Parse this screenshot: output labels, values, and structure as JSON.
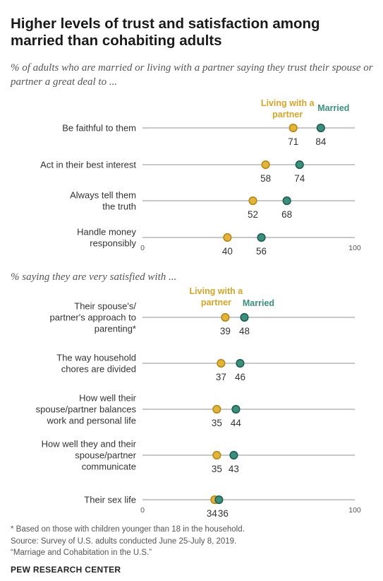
{
  "title": "Higher levels of trust and satisfaction among married than cohabiting adults",
  "colors": {
    "married": "#3b8f7c",
    "married_dark": "#1f5f51",
    "cohabiting": "#e2b43c",
    "cohabiting_dark": "#b5891a",
    "line": "#a8a8a8",
    "married_text": "#3b8f7c",
    "cohabiting_text": "#d4a52a"
  },
  "chart_data": [
    {
      "type": "dot",
      "subtitle": "% of adults who are married or living with a partner saying they trust their spouse or partner a great deal to ...",
      "legend": {
        "cohabiting": [
          "Living with a",
          "partner"
        ],
        "married": "Married"
      },
      "xlim": [
        0,
        100
      ],
      "ticks": [
        "0",
        "100"
      ],
      "categories": [
        [
          "Be faithful to them"
        ],
        [
          "Act in their best interest"
        ],
        [
          "Always tell them",
          "the truth"
        ],
        [
          "Handle money",
          "responsibly"
        ]
      ],
      "series": [
        {
          "name": "Living with a partner",
          "values": [
            71,
            58,
            52,
            40
          ]
        },
        {
          "name": "Married",
          "values": [
            84,
            74,
            68,
            56
          ]
        }
      ]
    },
    {
      "type": "dot",
      "subtitle": "% saying they are very satisfied with ...",
      "legend": {
        "cohabiting": [
          "Living with a",
          "partner"
        ],
        "married": "Married"
      },
      "xlim": [
        0,
        100
      ],
      "ticks": [
        "0",
        "100"
      ],
      "categories": [
        [
          "Their spouse's/",
          "partner's approach to",
          "parenting*"
        ],
        [
          "The way household",
          "chores are divided"
        ],
        [
          "How well their",
          "spouse/partner balances",
          "work and personal life"
        ],
        [
          "How well they and their",
          "spouse/partner",
          "communicate"
        ],
        [
          "Their sex life"
        ]
      ],
      "series": [
        {
          "name": "Living with a partner",
          "values": [
            39,
            37,
            35,
            35,
            34
          ]
        },
        {
          "name": "Married",
          "values": [
            48,
            46,
            44,
            43,
            36
          ]
        }
      ]
    }
  ],
  "notes": [
    "* Based on those with children younger than 18 in the household.",
    "Source: Survey of U.S. adults conducted June 25-July 8, 2019.",
    "“Marriage and Cohabitation in the U.S.”"
  ],
  "brand": "PEW RESEARCH CENTER"
}
